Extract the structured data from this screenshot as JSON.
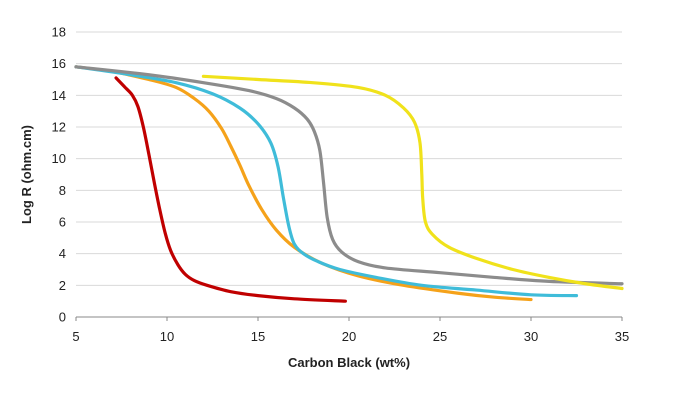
{
  "chart_data": {
    "type": "line",
    "title": "",
    "xlabel": "Carbon Black (wt%)",
    "ylabel": "Log R (ohm.cm)",
    "xlim": [
      5,
      35
    ],
    "ylim": [
      0,
      18
    ],
    "xticks": [
      "5",
      "10",
      "15",
      "20",
      "25",
      "30",
      "35"
    ],
    "yticks": [
      "0",
      "2",
      "4",
      "6",
      "8",
      "10",
      "12",
      "14",
      "16",
      "18"
    ],
    "grid": "horizontal",
    "legend": "none",
    "series": [
      {
        "name": "red",
        "color": "#c00000",
        "x": [
          7.2,
          7.7,
          8.1,
          8.4,
          8.7,
          9.0,
          9.3,
          9.6,
          9.9,
          10.2,
          10.6,
          11.0,
          11.5,
          12.2,
          13.5,
          15.0,
          17.0,
          19.8
        ],
        "y": [
          15.1,
          14.5,
          14.0,
          13.3,
          12.0,
          10.3,
          8.5,
          6.8,
          5.3,
          4.2,
          3.3,
          2.7,
          2.3,
          2.0,
          1.6,
          1.35,
          1.15,
          1.0
        ]
      },
      {
        "name": "orange",
        "color": "#f5a21a",
        "x": [
          5.0,
          7.0,
          9.0,
          10.5,
          11.5,
          12.3,
          13.0,
          13.5,
          14.0,
          14.5,
          15.2,
          16.0,
          17.0,
          18.5,
          20.5,
          23.0,
          26.0,
          28.0,
          30.0
        ],
        "y": [
          15.8,
          15.5,
          15.0,
          14.5,
          13.8,
          13.0,
          11.9,
          10.8,
          9.6,
          8.3,
          6.8,
          5.5,
          4.4,
          3.4,
          2.6,
          2.0,
          1.5,
          1.25,
          1.1
        ]
      },
      {
        "name": "cyan",
        "color": "#3fbcd9",
        "x": [
          5.0,
          8.0,
          10.5,
          12.5,
          14.0,
          15.0,
          15.7,
          16.1,
          16.4,
          16.7,
          17.0,
          17.5,
          18.3,
          19.5,
          21.5,
          24.0,
          27.0,
          30.0,
          32.5
        ],
        "y": [
          15.8,
          15.3,
          14.8,
          14.1,
          13.2,
          12.2,
          11.0,
          9.5,
          7.5,
          5.7,
          4.6,
          4.0,
          3.5,
          3.0,
          2.5,
          2.0,
          1.7,
          1.4,
          1.35
        ]
      },
      {
        "name": "gray",
        "color": "#8c8c8c",
        "x": [
          5.0,
          9.0,
          12.0,
          14.5,
          16.0,
          17.0,
          17.7,
          18.1,
          18.4,
          18.6,
          18.8,
          19.1,
          19.6,
          20.5,
          22.0,
          25.0,
          28.0,
          31.0,
          35.0
        ],
        "y": [
          15.8,
          15.3,
          14.8,
          14.3,
          13.8,
          13.2,
          12.5,
          11.7,
          10.5,
          8.5,
          6.3,
          4.9,
          4.1,
          3.5,
          3.1,
          2.8,
          2.5,
          2.25,
          2.1
        ]
      },
      {
        "name": "yellow",
        "color": "#f0e21b",
        "x": [
          12.0,
          15.0,
          18.0,
          20.5,
          22.0,
          23.0,
          23.6,
          23.9,
          24.0,
          24.05,
          24.2,
          24.6,
          25.5,
          27.0,
          29.0,
          31.0,
          33.0,
          35.0
        ],
        "y": [
          15.2,
          15.0,
          14.8,
          14.5,
          14.0,
          13.2,
          12.3,
          11.0,
          9.0,
          7.5,
          6.0,
          5.2,
          4.4,
          3.7,
          3.0,
          2.5,
          2.1,
          1.8
        ]
      }
    ]
  }
}
